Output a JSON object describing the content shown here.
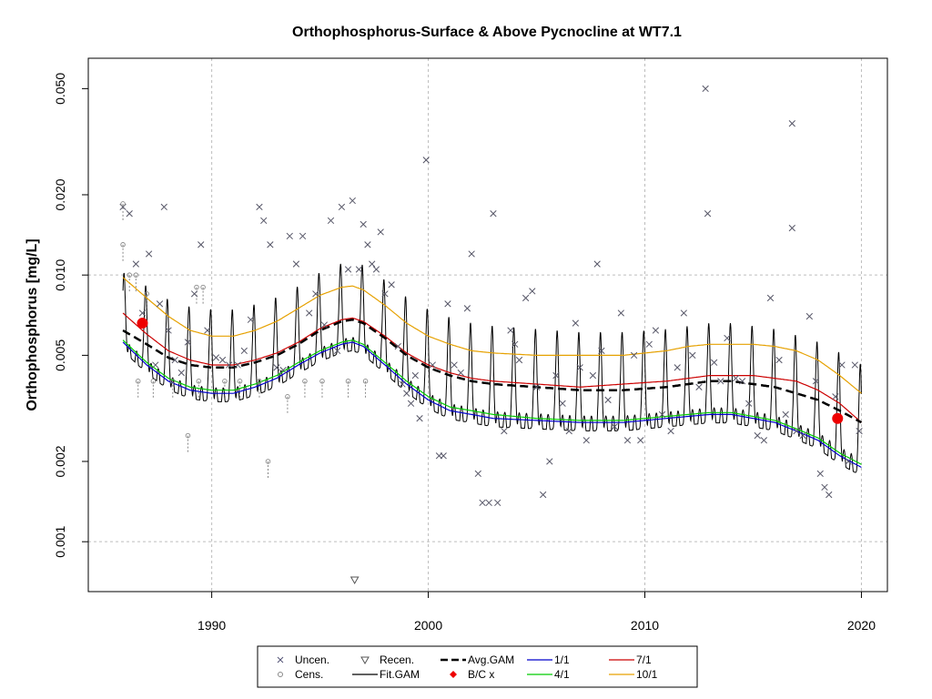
{
  "chart_data": {
    "type": "scatter",
    "title": "Orthophosphorus-Surface & Above Pycnocline at WT7.1",
    "xlabel": "",
    "ylabel": "Orthophosphorus [mg/L]",
    "y_scale": "log",
    "xlim": [
      1984.3,
      2021.2
    ],
    "ylim": [
      0.00065,
      0.065
    ],
    "x_ticks": [
      1990,
      2000,
      2010,
      2020
    ],
    "x_tick_labels": [
      "1990",
      "2000",
      "2010",
      "2020"
    ],
    "y_ticks": [
      0.001,
      0.002,
      0.005,
      0.01,
      0.02,
      0.05
    ],
    "y_tick_labels": [
      "0.001",
      "0.002",
      "0.005",
      "0.010",
      "0.020",
      "0.050"
    ],
    "grid": true,
    "legend_position": "bottom",
    "legend": [
      {
        "label": "Uncen.",
        "symbol": "x",
        "color": "#555577"
      },
      {
        "label": "Cens.",
        "symbol": "circle",
        "color": "#888888"
      },
      {
        "label": "Recen.",
        "symbol": "triangle-down",
        "color": "#555555"
      },
      {
        "label": "Fit.GAM",
        "symbol": "line",
        "color": "#000000"
      },
      {
        "label": "Avg.GAM",
        "symbol": "dashed",
        "color": "#000000"
      },
      {
        "label": "B/C x",
        "symbol": "point",
        "color": "#ee0000"
      },
      {
        "label": "1/1",
        "symbol": "line",
        "color": "#0000cc"
      },
      {
        "label": "4/1",
        "symbol": "line",
        "color": "#00cc00"
      },
      {
        "label": "7/1",
        "symbol": "line",
        "color": "#cc0000"
      },
      {
        "label": "10/1",
        "symbol": "line",
        "color": "#e6a100"
      }
    ],
    "series": [
      {
        "name": "Avg.GAM",
        "color": "#000000",
        "points": [
          [
            1985.9,
            0.0062
          ],
          [
            1987,
            0.0055
          ],
          [
            1988,
            0.0049
          ],
          [
            1989,
            0.0046
          ],
          [
            1990,
            0.0045
          ],
          [
            1991,
            0.0045
          ],
          [
            1992,
            0.0047
          ],
          [
            1993,
            0.005
          ],
          [
            1994,
            0.0055
          ],
          [
            1995,
            0.0062
          ],
          [
            1996,
            0.0067
          ],
          [
            1996.5,
            0.0068
          ],
          [
            1997,
            0.0066
          ],
          [
            1998,
            0.0058
          ],
          [
            1999,
            0.005
          ],
          [
            2000,
            0.0045
          ],
          [
            2001,
            0.0042
          ],
          [
            2002,
            0.004
          ],
          [
            2003,
            0.0039
          ],
          [
            2005,
            0.0038
          ],
          [
            2007,
            0.0037
          ],
          [
            2009,
            0.0037
          ],
          [
            2011,
            0.0038
          ],
          [
            2012,
            0.0039
          ],
          [
            2013,
            0.004
          ],
          [
            2014,
            0.004
          ],
          [
            2015,
            0.0039
          ],
          [
            2016,
            0.0038
          ],
          [
            2017,
            0.0036
          ],
          [
            2018,
            0.0034
          ],
          [
            2019,
            0.0031
          ],
          [
            2020,
            0.0028
          ]
        ]
      },
      {
        "name": "1/1",
        "color": "#0000cc",
        "points": [
          [
            1985.9,
            0.0056
          ],
          [
            1987,
            0.0046
          ],
          [
            1988,
            0.004
          ],
          [
            1989,
            0.0037
          ],
          [
            1990,
            0.0036
          ],
          [
            1991,
            0.0036
          ],
          [
            1992,
            0.0038
          ],
          [
            1993,
            0.0041
          ],
          [
            1994,
            0.0046
          ],
          [
            1995,
            0.0051
          ],
          [
            1996,
            0.0055
          ],
          [
            1996.5,
            0.0056
          ],
          [
            1997,
            0.0054
          ],
          [
            1998,
            0.0046
          ],
          [
            1999,
            0.0039
          ],
          [
            2000,
            0.0034
          ],
          [
            2001,
            0.0031
          ],
          [
            2002,
            0.003
          ],
          [
            2003,
            0.0029
          ],
          [
            2005,
            0.00285
          ],
          [
            2007,
            0.0028
          ],
          [
            2009,
            0.0028
          ],
          [
            2011,
            0.0029
          ],
          [
            2012,
            0.00295
          ],
          [
            2013,
            0.003
          ],
          [
            2014,
            0.003
          ],
          [
            2015,
            0.0029
          ],
          [
            2016,
            0.0028
          ],
          [
            2017,
            0.0026
          ],
          [
            2018,
            0.0024
          ],
          [
            2019,
            0.0021
          ],
          [
            2020,
            0.0019
          ]
        ]
      },
      {
        "name": "4/1",
        "color": "#00cc00",
        "points": [
          [
            1985.9,
            0.0057
          ],
          [
            1987,
            0.0047
          ],
          [
            1988,
            0.0041
          ],
          [
            1989,
            0.0038
          ],
          [
            1990,
            0.0037
          ],
          [
            1991,
            0.0037
          ],
          [
            1992,
            0.0039
          ],
          [
            1993,
            0.0042
          ],
          [
            1994,
            0.0047
          ],
          [
            1995,
            0.0052
          ],
          [
            1996,
            0.0056
          ],
          [
            1996.5,
            0.0057
          ],
          [
            1997,
            0.0055
          ],
          [
            1998,
            0.0047
          ],
          [
            1999,
            0.004
          ],
          [
            2000,
            0.0035
          ],
          [
            2001,
            0.0032
          ],
          [
            2002,
            0.0031
          ],
          [
            2003,
            0.003
          ],
          [
            2005,
            0.0029
          ],
          [
            2007,
            0.00285
          ],
          [
            2009,
            0.00285
          ],
          [
            2011,
            0.00295
          ],
          [
            2012,
            0.003
          ],
          [
            2013,
            0.00305
          ],
          [
            2014,
            0.00305
          ],
          [
            2015,
            0.00295
          ],
          [
            2016,
            0.00285
          ],
          [
            2017,
            0.00265
          ],
          [
            2018,
            0.00245
          ],
          [
            2019,
            0.00215
          ],
          [
            2020,
            0.00195
          ]
        ]
      },
      {
        "name": "7/1",
        "color": "#cc0000",
        "points": [
          [
            1985.9,
            0.0072
          ],
          [
            1987,
            0.006
          ],
          [
            1988,
            0.0052
          ],
          [
            1989,
            0.0048
          ],
          [
            1990,
            0.0046
          ],
          [
            1991,
            0.0046
          ],
          [
            1992,
            0.0048
          ],
          [
            1993,
            0.0051
          ],
          [
            1994,
            0.0056
          ],
          [
            1995,
            0.0063
          ],
          [
            1996,
            0.0068
          ],
          [
            1996.5,
            0.0069
          ],
          [
            1997,
            0.0067
          ],
          [
            1998,
            0.0059
          ],
          [
            1999,
            0.0051
          ],
          [
            2000,
            0.0046
          ],
          [
            2001,
            0.0043
          ],
          [
            2002,
            0.0041
          ],
          [
            2003,
            0.004
          ],
          [
            2005,
            0.0039
          ],
          [
            2007,
            0.0038
          ],
          [
            2009,
            0.0039
          ],
          [
            2011,
            0.004
          ],
          [
            2012,
            0.0041
          ],
          [
            2013,
            0.0042
          ],
          [
            2014,
            0.0042
          ],
          [
            2015,
            0.0042
          ],
          [
            2016,
            0.0041
          ],
          [
            2017,
            0.004
          ],
          [
            2018,
            0.0037
          ],
          [
            2019,
            0.0033
          ],
          [
            2020,
            0.0028
          ]
        ]
      },
      {
        "name": "10/1",
        "color": "#e6a100",
        "points": [
          [
            1985.9,
            0.0098
          ],
          [
            1987,
            0.0082
          ],
          [
            1988,
            0.007
          ],
          [
            1989,
            0.0062
          ],
          [
            1990,
            0.0059
          ],
          [
            1991,
            0.0059
          ],
          [
            1992,
            0.0062
          ],
          [
            1993,
            0.0067
          ],
          [
            1994,
            0.0075
          ],
          [
            1995,
            0.0084
          ],
          [
            1996,
            0.009
          ],
          [
            1996.5,
            0.0091
          ],
          [
            1997,
            0.0088
          ],
          [
            1998,
            0.0077
          ],
          [
            1999,
            0.0066
          ],
          [
            2000,
            0.0059
          ],
          [
            2001,
            0.0055
          ],
          [
            2002,
            0.0052
          ],
          [
            2003,
            0.0051
          ],
          [
            2005,
            0.005
          ],
          [
            2007,
            0.005
          ],
          [
            2009,
            0.005
          ],
          [
            2011,
            0.0052
          ],
          [
            2012,
            0.0054
          ],
          [
            2013,
            0.0055
          ],
          [
            2014,
            0.0055
          ],
          [
            2015,
            0.0055
          ],
          [
            2016,
            0.0054
          ],
          [
            2017,
            0.0052
          ],
          [
            2018,
            0.0048
          ],
          [
            2019,
            0.0042
          ],
          [
            2020,
            0.0036
          ]
        ]
      }
    ],
    "fit_gam": {
      "name": "Fit.GAM",
      "color": "#000000",
      "start": 1985.9,
      "end": 2020.0,
      "peak_multiplier": 1.65,
      "trough_multiplier": 0.93
    },
    "bc_points": [
      {
        "x": 1986.8,
        "y": 0.0066
      },
      {
        "x": 2018.9,
        "y": 0.0029
      }
    ],
    "uncensored": [
      [
        1985.9,
        0.018
      ],
      [
        1986.2,
        0.017
      ],
      [
        1986.5,
        0.011
      ],
      [
        1986.8,
        0.0072
      ],
      [
        1987.1,
        0.012
      ],
      [
        1987.4,
        0.0046
      ],
      [
        1987.6,
        0.0078
      ],
      [
        1987.8,
        0.018
      ],
      [
        1988.0,
        0.0062
      ],
      [
        1988.3,
        0.0048
      ],
      [
        1988.6,
        0.0043
      ],
      [
        1988.9,
        0.0056
      ],
      [
        1989.2,
        0.0085
      ],
      [
        1989.5,
        0.013
      ],
      [
        1989.8,
        0.0062
      ],
      [
        1990.2,
        0.0049
      ],
      [
        1990.5,
        0.0048
      ],
      [
        1990.8,
        0.0046
      ],
      [
        1991.2,
        0.0046
      ],
      [
        1991.5,
        0.0052
      ],
      [
        1991.8,
        0.0068
      ],
      [
        1992.2,
        0.018
      ],
      [
        1992.4,
        0.016
      ],
      [
        1992.7,
        0.013
      ],
      [
        1993.0,
        0.0045
      ],
      [
        1993.3,
        0.0044
      ],
      [
        1993.6,
        0.014
      ],
      [
        1993.9,
        0.011
      ],
      [
        1994.2,
        0.014
      ],
      [
        1994.5,
        0.0072
      ],
      [
        1994.8,
        0.0085
      ],
      [
        1995.2,
        0.0065
      ],
      [
        1995.5,
        0.016
      ],
      [
        1995.8,
        0.0052
      ],
      [
        1996.0,
        0.018
      ],
      [
        1996.3,
        0.0105
      ],
      [
        1996.5,
        0.019
      ],
      [
        1996.8,
        0.0105
      ],
      [
        1997.0,
        0.0155
      ],
      [
        1997.2,
        0.013
      ],
      [
        1997.4,
        0.011
      ],
      [
        1997.6,
        0.0105
      ],
      [
        1997.8,
        0.0145
      ],
      [
        1998.0,
        0.0085
      ],
      [
        1998.3,
        0.0092
      ],
      [
        1998.6,
        0.0054
      ],
      [
        1998.8,
        0.0039
      ],
      [
        1999.0,
        0.0036
      ],
      [
        1999.2,
        0.0033
      ],
      [
        1999.4,
        0.0042
      ],
      [
        1999.6,
        0.0029
      ],
      [
        1999.9,
        0.027
      ],
      [
        2000.2,
        0.0046
      ],
      [
        2000.5,
        0.0021
      ],
      [
        2000.7,
        0.0021
      ],
      [
        2000.9,
        0.0078
      ],
      [
        2001.2,
        0.0046
      ],
      [
        2001.5,
        0.0043
      ],
      [
        2001.8,
        0.0075
      ],
      [
        2002.0,
        0.012
      ],
      [
        2002.3,
        0.0018
      ],
      [
        2002.5,
        0.0014
      ],
      [
        2002.8,
        0.0014
      ],
      [
        2003.0,
        0.017
      ],
      [
        2003.2,
        0.0014
      ],
      [
        2003.5,
        0.0026
      ],
      [
        2003.8,
        0.0062
      ],
      [
        2004.0,
        0.0055
      ],
      [
        2004.2,
        0.0048
      ],
      [
        2004.5,
        0.0082
      ],
      [
        2004.8,
        0.0087
      ],
      [
        2005.0,
        0.0038
      ],
      [
        2005.3,
        0.0015
      ],
      [
        2005.6,
        0.002
      ],
      [
        2005.9,
        0.0042
      ],
      [
        2006.2,
        0.0033
      ],
      [
        2006.5,
        0.0026
      ],
      [
        2006.8,
        0.0066
      ],
      [
        2007.0,
        0.0045
      ],
      [
        2007.3,
        0.0024
      ],
      [
        2007.6,
        0.0042
      ],
      [
        2007.8,
        0.011
      ],
      [
        2008.0,
        0.0052
      ],
      [
        2008.3,
        0.0034
      ],
      [
        2008.6,
        0.0027
      ],
      [
        2008.9,
        0.0072
      ],
      [
        2009.2,
        0.0024
      ],
      [
        2009.5,
        0.005
      ],
      [
        2009.8,
        0.0024
      ],
      [
        2010.2,
        0.0055
      ],
      [
        2010.5,
        0.0062
      ],
      [
        2010.8,
        0.003
      ],
      [
        2011.2,
        0.0026
      ],
      [
        2011.5,
        0.0045
      ],
      [
        2011.8,
        0.0072
      ],
      [
        2012.2,
        0.005
      ],
      [
        2012.5,
        0.0038
      ],
      [
        2012.8,
        0.05
      ],
      [
        2012.9,
        0.017
      ],
      [
        2013.2,
        0.0047
      ],
      [
        2013.5,
        0.004
      ],
      [
        2013.8,
        0.0058
      ],
      [
        2014.2,
        0.0041
      ],
      [
        2014.5,
        0.004
      ],
      [
        2014.8,
        0.0033
      ],
      [
        2015.2,
        0.0025
      ],
      [
        2015.5,
        0.0024
      ],
      [
        2015.8,
        0.0082
      ],
      [
        2016.2,
        0.0048
      ],
      [
        2016.5,
        0.003
      ],
      [
        2016.8,
        0.037
      ],
      [
        2016.8,
        0.015
      ],
      [
        2017.0,
        0.0026
      ],
      [
        2017.3,
        0.0025
      ],
      [
        2017.6,
        0.007
      ],
      [
        2017.9,
        0.004
      ],
      [
        2018.1,
        0.0018
      ],
      [
        2018.3,
        0.0016
      ],
      [
        2018.5,
        0.0015
      ],
      [
        2018.8,
        0.0035
      ],
      [
        2019.1,
        0.0046
      ],
      [
        2019.4,
        0.002
      ],
      [
        2019.7,
        0.0046
      ],
      [
        2019.9,
        0.0026
      ]
    ],
    "censored": [
      [
        1985.9,
        0.0185
      ],
      [
        1985.9,
        0.013
      ],
      [
        1986.2,
        0.01
      ],
      [
        1986.5,
        0.01
      ],
      [
        1986.6,
        0.004
      ],
      [
        1987.0,
        0.0085
      ],
      [
        1987.3,
        0.004
      ],
      [
        1988.2,
        0.004
      ],
      [
        1988.9,
        0.0025
      ],
      [
        1989.3,
        0.009
      ],
      [
        1989.6,
        0.009
      ],
      [
        1989.4,
        0.004
      ],
      [
        1990.6,
        0.004
      ],
      [
        1991.3,
        0.004
      ],
      [
        1992.2,
        0.004
      ],
      [
        1992.6,
        0.002
      ],
      [
        1993.5,
        0.0035
      ],
      [
        1994.3,
        0.004
      ],
      [
        1995.1,
        0.004
      ],
      [
        1996.3,
        0.004
      ],
      [
        1997.1,
        0.004
      ]
    ],
    "recensored": [
      [
        1996.6,
        0.00072
      ]
    ]
  }
}
